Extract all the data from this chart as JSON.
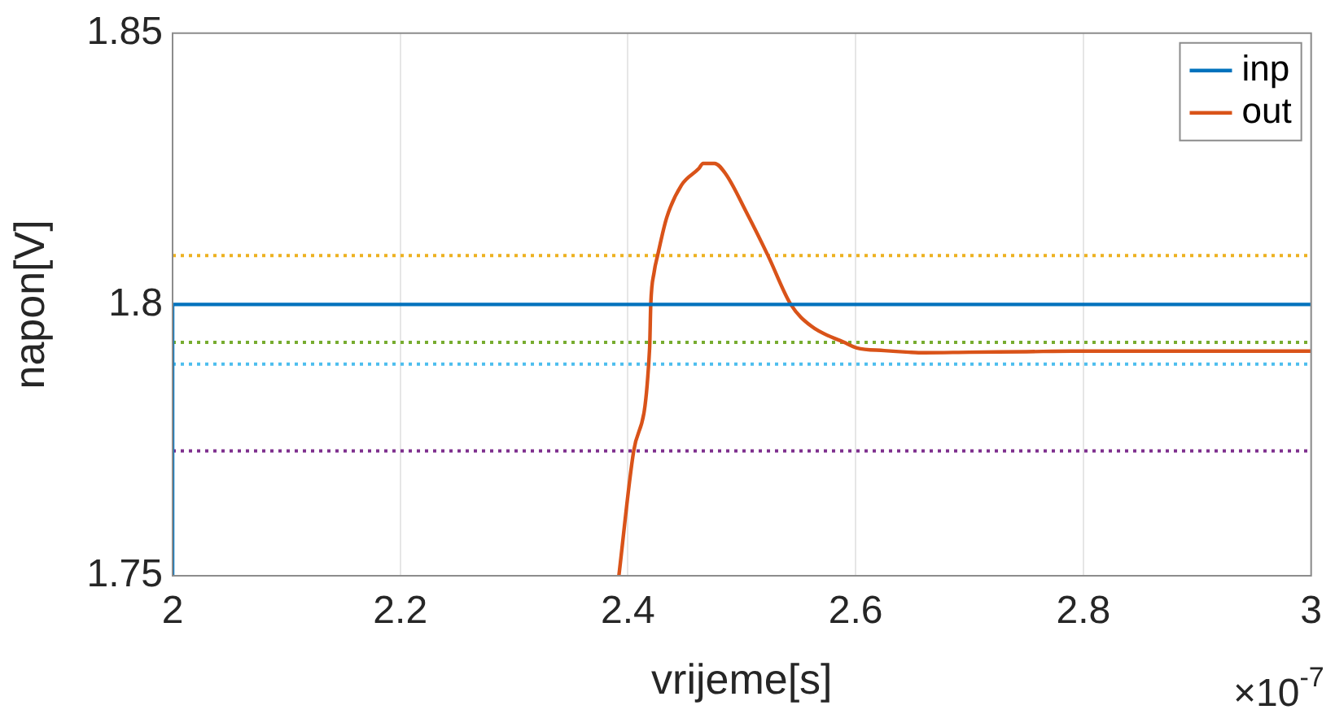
{
  "chart_data": {
    "type": "line",
    "xlabel": "vrijeme[s]",
    "ylabel": "napon[V]",
    "xlim": [
      2,
      3
    ],
    "xticks": [
      2,
      2.2,
      2.4,
      2.6,
      2.8,
      3
    ],
    "ylim": [
      1.75,
      1.85
    ],
    "yticks": [
      1.75,
      1.8,
      1.85
    ],
    "grid": "x",
    "legend": "top right",
    "line_style": "solid",
    "marker": "none",
    "series": [
      {
        "name": "inp",
        "color": "#0072bd",
        "x": [
          2,
          2,
          3
        ],
        "values": [
          1.75,
          1.8,
          1.8
        ]
      },
      {
        "name": "out",
        "color": "#d95319",
        "x": [
          2.392,
          2.405,
          2.419,
          2.42,
          2.423,
          2.426,
          2.434,
          2.447,
          2.462,
          2.466,
          2.476,
          2.486,
          2.504,
          2.523,
          2.543,
          2.561,
          2.59,
          2.601,
          2.625,
          2.647,
          2.66,
          2.7,
          2.75,
          2.79,
          2.85,
          2.9,
          2.95,
          3
        ],
        "values": [
          1.75,
          1.773,
          1.792,
          1.8,
          1.806,
          1.809,
          1.816,
          1.822,
          1.825,
          1.826,
          1.826,
          1.824,
          1.817,
          1.809,
          1.8,
          1.796,
          1.793,
          1.792,
          1.7915,
          1.7912,
          1.7911,
          1.7912,
          1.7913,
          1.7914,
          1.7914,
          1.7914,
          1.7914,
          1.7914
        ]
      }
    ],
    "ref_lines": [
      {
        "axis": "y",
        "value": 1.809,
        "color": "#edb120",
        "line_style": "dotted"
      },
      {
        "axis": "y",
        "value": 1.793,
        "color": "#77ac30",
        "line_style": "dotted"
      },
      {
        "axis": "y",
        "value": 1.789,
        "color": "#4dbeee",
        "line_style": "dotted"
      },
      {
        "axis": "y",
        "value": 1.773,
        "color": "#7e2f8e",
        "line_style": "dotted"
      }
    ],
    "annotations": [
      "×10$^{-7}$"
    ]
  }
}
